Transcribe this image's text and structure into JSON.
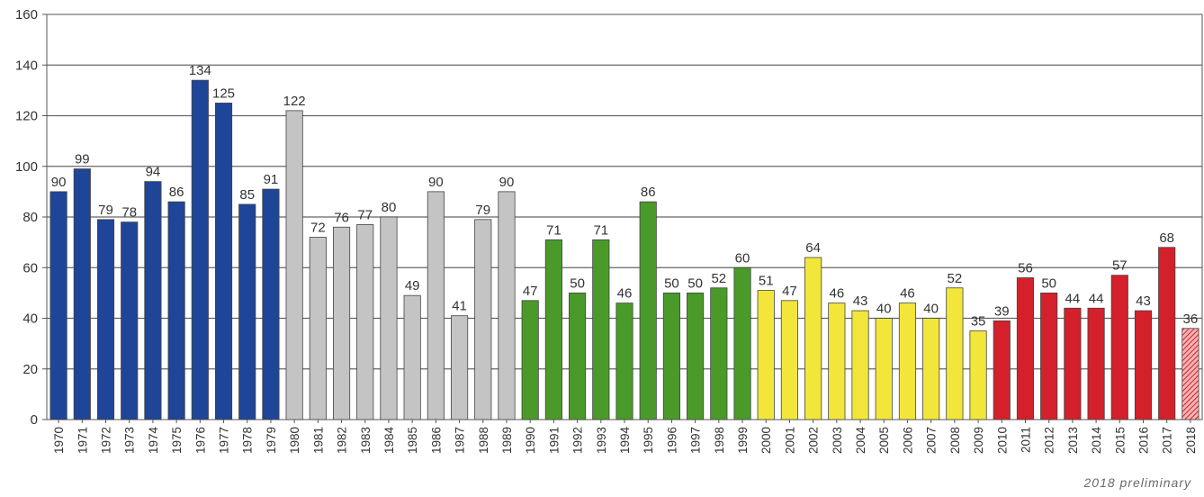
{
  "chart_data": {
    "type": "bar",
    "title": "",
    "xlabel": "",
    "ylabel": "",
    "ylim": [
      0,
      160
    ],
    "yticks": [
      0,
      20,
      40,
      60,
      80,
      100,
      120,
      140,
      160
    ],
    "grid": true,
    "legend": "none",
    "categories": [
      "1970",
      "1971",
      "1972",
      "1973",
      "1974",
      "1975",
      "1976",
      "1977",
      "1978",
      "1979",
      "1980",
      "1981",
      "1982",
      "1983",
      "1984",
      "1985",
      "1986",
      "1987",
      "1988",
      "1989",
      "1990",
      "1991",
      "1992",
      "1993",
      "1994",
      "1995",
      "1996",
      "1997",
      "1998",
      "1999",
      "2000",
      "2001",
      "2002",
      "2003",
      "2004",
      "2005",
      "2006",
      "2007",
      "2008",
      "2009",
      "2010",
      "2011",
      "2012",
      "2013",
      "2014",
      "2015",
      "2016",
      "2017",
      "2018"
    ],
    "values": [
      90,
      99,
      79,
      78,
      94,
      86,
      134,
      125,
      85,
      91,
      122,
      72,
      76,
      77,
      80,
      49,
      90,
      41,
      79,
      90,
      47,
      71,
      50,
      71,
      46,
      86,
      50,
      50,
      52,
      60,
      51,
      47,
      64,
      46,
      43,
      40,
      46,
      40,
      52,
      35,
      39,
      56,
      50,
      44,
      44,
      57,
      43,
      68,
      36
    ],
    "decade_colors": {
      "1970s": "#1f4598",
      "1980s": "#c4c4c4",
      "1990s": "#4a9a2a",
      "2000s": "#f2e63a",
      "2010s": "#d4202a"
    },
    "preliminary_years": [
      "2018"
    ],
    "footnote": "2018 preliminary"
  }
}
